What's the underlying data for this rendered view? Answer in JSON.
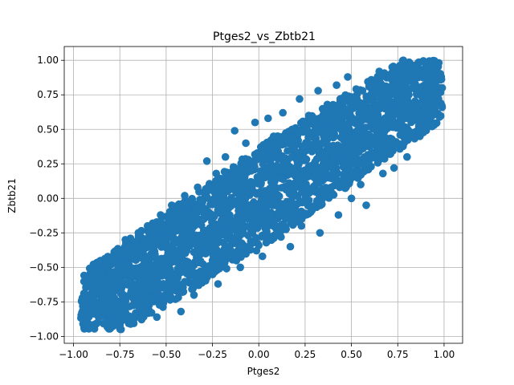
{
  "chart_data": {
    "type": "scatter",
    "title": "Ptges2_vs_Zbtb21",
    "xlabel": "Ptges2",
    "ylabel": "Zbtb21",
    "xlim": [
      -1.05,
      1.1
    ],
    "ylim": [
      -1.05,
      1.1
    ],
    "xticks": [
      -1.0,
      -0.75,
      -0.5,
      -0.25,
      0.0,
      0.25,
      0.5,
      0.75,
      1.0
    ],
    "xtick_labels": [
      "−1.00",
      "−0.75",
      "−0.50",
      "−0.25",
      "0.00",
      "0.25",
      "0.50",
      "0.75",
      "1.00"
    ],
    "yticks": [
      -1.0,
      -0.75,
      -0.5,
      -0.25,
      0.0,
      0.25,
      0.5,
      0.75,
      1.0
    ],
    "ytick_labels": [
      "−1.00",
      "−0.75",
      "−0.50",
      "−0.25",
      "0.00",
      "0.25",
      "0.50",
      "0.75",
      "1.00"
    ],
    "grid": true,
    "marker_color": "#1f77b4",
    "series": [
      {
        "points": [
          [
            -0.95,
            -0.78
          ],
          [
            -0.93,
            -0.62
          ],
          [
            -0.92,
            -0.86
          ],
          [
            -0.9,
            -0.7
          ],
          [
            -0.88,
            -0.52
          ],
          [
            -0.87,
            -0.9
          ],
          [
            -0.85,
            -0.8
          ],
          [
            -0.83,
            -0.45
          ],
          [
            -0.82,
            -0.65
          ],
          [
            -0.8,
            -0.94
          ],
          [
            -0.78,
            -0.55
          ],
          [
            -0.77,
            -0.38
          ],
          [
            -0.75,
            -0.82
          ],
          [
            -0.73,
            -0.7
          ],
          [
            -0.72,
            -0.3
          ],
          [
            -0.7,
            -0.6
          ],
          [
            -0.68,
            -0.88
          ],
          [
            -0.67,
            -0.42
          ],
          [
            -0.65,
            -0.25
          ],
          [
            -0.63,
            -0.76
          ],
          [
            -0.62,
            -0.5
          ],
          [
            -0.6,
            -0.2
          ],
          [
            -0.58,
            -0.66
          ],
          [
            -0.57,
            -0.35
          ],
          [
            -0.55,
            -0.86
          ],
          [
            -0.53,
            -0.12
          ],
          [
            -0.52,
            -0.55
          ],
          [
            -0.5,
            -0.72
          ],
          [
            -0.48,
            -0.28
          ],
          [
            -0.47,
            -0.05
          ],
          [
            -0.45,
            -0.62
          ],
          [
            -0.43,
            -0.42
          ],
          [
            -0.42,
            -0.82
          ],
          [
            -0.4,
            0.02
          ],
          [
            -0.38,
            -0.18
          ],
          [
            -0.37,
            -0.52
          ],
          [
            -0.35,
            -0.7
          ],
          [
            -0.33,
            0.08
          ],
          [
            -0.32,
            -0.35
          ],
          [
            -0.3,
            -0.58
          ],
          [
            -0.28,
            0.27
          ],
          [
            -0.27,
            -0.1
          ],
          [
            -0.25,
            -0.45
          ],
          [
            -0.23,
            0.18
          ],
          [
            -0.22,
            -0.62
          ],
          [
            -0.2,
            -0.25
          ],
          [
            -0.18,
            0.3
          ],
          [
            -0.17,
            0.05
          ],
          [
            -0.15,
            -0.38
          ],
          [
            -0.13,
            0.49
          ],
          [
            -0.12,
            -0.15
          ],
          [
            -0.1,
            -0.5
          ],
          [
            -0.08,
            0.22
          ],
          [
            -0.07,
            0.4
          ],
          [
            -0.05,
            -0.05
          ],
          [
            -0.03,
            -0.32
          ],
          [
            -0.02,
            0.55
          ],
          [
            0.0,
            0.12
          ],
          [
            0.02,
            -0.42
          ],
          [
            0.03,
            0.33
          ],
          [
            0.05,
            0.58
          ],
          [
            0.07,
            -0.12
          ],
          [
            0.08,
            0.45
          ],
          [
            0.1,
            0.02
          ],
          [
            0.12,
            -0.28
          ],
          [
            0.13,
            0.62
          ],
          [
            0.15,
            0.25
          ],
          [
            0.17,
            -0.35
          ],
          [
            0.18,
            0.5
          ],
          [
            0.2,
            0.08
          ],
          [
            0.22,
            0.72
          ],
          [
            0.23,
            -0.2
          ],
          [
            0.25,
            0.38
          ],
          [
            0.27,
            0.6
          ],
          [
            0.28,
            -0.1
          ],
          [
            0.3,
            0.15
          ],
          [
            0.32,
            0.78
          ],
          [
            0.33,
            -0.25
          ],
          [
            0.35,
            0.45
          ],
          [
            0.37,
            0.68
          ],
          [
            0.38,
            0.05
          ],
          [
            0.4,
            0.3
          ],
          [
            0.42,
            0.82
          ],
          [
            0.43,
            -0.12
          ],
          [
            0.45,
            0.55
          ],
          [
            0.47,
            0.2
          ],
          [
            0.48,
            0.88
          ],
          [
            0.5,
            0.0
          ],
          [
            0.52,
            0.4
          ],
          [
            0.53,
            0.72
          ],
          [
            0.55,
            0.1
          ],
          [
            0.57,
            0.6
          ],
          [
            0.58,
            -0.05
          ],
          [
            0.6,
            0.85
          ],
          [
            0.62,
            0.3
          ],
          [
            0.63,
            0.5
          ],
          [
            0.65,
            0.92
          ],
          [
            0.67,
            0.18
          ],
          [
            0.68,
            0.65
          ],
          [
            0.7,
            0.4
          ],
          [
            0.72,
            0.95
          ],
          [
            0.73,
            0.22
          ],
          [
            0.75,
            0.7
          ],
          [
            0.77,
            0.5
          ],
          [
            0.78,
            1.0
          ],
          [
            0.8,
            0.3
          ],
          [
            0.82,
            0.85
          ],
          [
            0.83,
            0.6
          ],
          [
            0.85,
            0.95
          ],
          [
            0.87,
            0.45
          ],
          [
            0.88,
            0.78
          ],
          [
            0.9,
            0.65
          ],
          [
            0.92,
            0.98
          ],
          [
            0.93,
            0.55
          ],
          [
            0.95,
            0.85
          ],
          [
            0.97,
            0.72
          ],
          [
            0.99,
            0.8
          ],
          [
            -0.91,
            -0.75
          ],
          [
            -0.86,
            -0.62
          ],
          [
            -0.79,
            -0.7
          ],
          [
            -0.74,
            -0.48
          ],
          [
            -0.69,
            -0.68
          ],
          [
            -0.64,
            -0.4
          ],
          [
            -0.59,
            -0.55
          ],
          [
            -0.54,
            -0.3
          ],
          [
            -0.49,
            -0.45
          ],
          [
            -0.44,
            -0.2
          ],
          [
            -0.39,
            -0.38
          ],
          [
            -0.34,
            -0.1
          ],
          [
            -0.29,
            -0.28
          ],
          [
            -0.24,
            0.0
          ],
          [
            -0.19,
            -0.15
          ],
          [
            -0.14,
            0.1
          ],
          [
            -0.09,
            -0.05
          ],
          [
            -0.04,
            0.2
          ],
          [
            0.01,
            0.05
          ],
          [
            0.06,
            0.3
          ],
          [
            0.11,
            0.15
          ],
          [
            0.16,
            0.4
          ],
          [
            0.21,
            0.25
          ],
          [
            0.26,
            0.5
          ],
          [
            0.31,
            0.35
          ],
          [
            0.36,
            0.6
          ],
          [
            0.41,
            0.45
          ],
          [
            0.46,
            0.7
          ],
          [
            0.51,
            0.55
          ],
          [
            0.56,
            0.78
          ],
          [
            0.61,
            0.62
          ],
          [
            0.66,
            0.82
          ],
          [
            0.71,
            0.7
          ],
          [
            0.76,
            0.88
          ],
          [
            0.81,
            0.75
          ],
          [
            0.86,
            0.9
          ],
          [
            0.91,
            0.82
          ],
          [
            0.96,
            0.92
          ],
          [
            -0.77,
            -0.64
          ],
          [
            -0.66,
            -0.52
          ],
          [
            -0.56,
            -0.42
          ],
          [
            -0.46,
            -0.32
          ],
          [
            -0.36,
            -0.22
          ],
          [
            -0.26,
            -0.12
          ],
          [
            -0.16,
            -0.02
          ],
          [
            -0.06,
            0.08
          ],
          [
            0.04,
            0.18
          ],
          [
            0.14,
            0.28
          ],
          [
            0.24,
            0.38
          ],
          [
            0.34,
            0.48
          ],
          [
            0.44,
            0.58
          ],
          [
            0.54,
            0.66
          ],
          [
            0.64,
            0.74
          ]
        ]
      }
    ]
  }
}
